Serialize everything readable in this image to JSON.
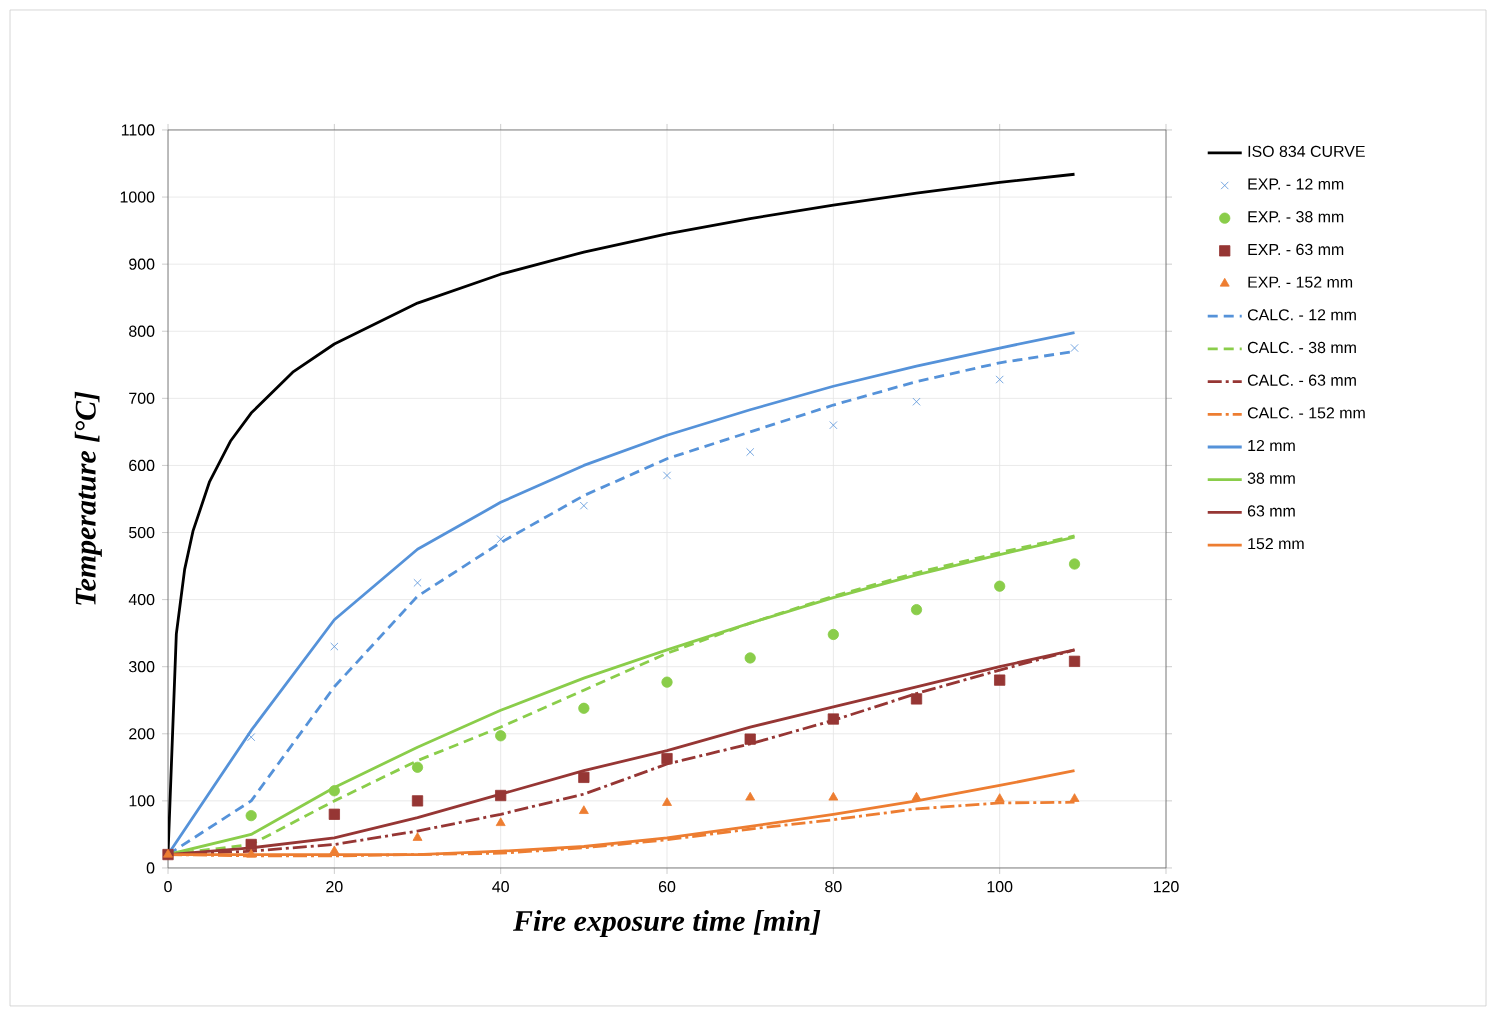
{
  "chart_data": {
    "type": "line",
    "xlabel": "Fire exposure time [min]",
    "ylabel": "Temperature [°C]",
    "xlim": [
      0,
      120
    ],
    "xticks": [
      0,
      20,
      40,
      60,
      80,
      100,
      120
    ],
    "ylim": [
      0,
      1100
    ],
    "yticks": [
      0,
      100,
      200,
      300,
      400,
      500,
      600,
      700,
      800,
      900,
      1000,
      1100
    ],
    "grid": true,
    "legend": "right",
    "series": [
      {
        "name": "ISO 834 CURVE",
        "type": "line",
        "color": "#000000",
        "line_style": "solid",
        "x": [
          0,
          1,
          2,
          3,
          5,
          7.5,
          10,
          15,
          20,
          30,
          40,
          50,
          60,
          70,
          80,
          90,
          100,
          109
        ],
        "values": [
          20,
          349,
          445,
          502,
          576,
          636,
          678,
          739,
          781,
          842,
          885,
          918,
          945,
          968,
          988,
          1006,
          1022,
          1034
        ]
      },
      {
        "name": "EXP. - 12 mm",
        "type": "scatter",
        "marker": "cross",
        "color": "#5592d9",
        "x": [
          10,
          20,
          30,
          40,
          50,
          60,
          70,
          80,
          90,
          100,
          109
        ],
        "values": [
          195,
          330,
          425,
          490,
          540,
          585,
          620,
          660,
          695,
          728,
          775
        ]
      },
      {
        "name": "EXP. - 38 mm",
        "type": "scatter",
        "marker": "circle",
        "color": "#8acd4a",
        "x": [
          10,
          20,
          30,
          40,
          50,
          60,
          70,
          80,
          90,
          100,
          109
        ],
        "values": [
          78,
          115,
          150,
          197,
          238,
          277,
          313,
          348,
          385,
          420,
          453
        ]
      },
      {
        "name": "EXP. - 63 mm",
        "type": "scatter",
        "marker": "square",
        "color": "#963634",
        "x": [
          0,
          10,
          20,
          30,
          40,
          50,
          60,
          70,
          80,
          90,
          100,
          109
        ],
        "values": [
          20,
          35,
          80,
          100,
          108,
          135,
          163,
          192,
          222,
          252,
          280,
          308
        ]
      },
      {
        "name": "EXP. - 152 mm",
        "type": "scatter",
        "marker": "triangle",
        "color": "#ed7d31",
        "x": [
          0,
          10,
          20,
          30,
          40,
          50,
          60,
          70,
          80,
          90,
          100,
          109
        ],
        "values": [
          20,
          20,
          25,
          45,
          67,
          85,
          97,
          105,
          105,
          105,
          103,
          103
        ]
      },
      {
        "name": "CALC. - 12 mm",
        "type": "line",
        "color": "#5592d9",
        "line_style": "dashed",
        "x": [
          0,
          10,
          20,
          30,
          40,
          50,
          60,
          70,
          80,
          90,
          100,
          109
        ],
        "values": [
          20,
          100,
          270,
          405,
          485,
          555,
          610,
          650,
          690,
          725,
          753,
          770
        ]
      },
      {
        "name": "CALC. - 38 mm",
        "type": "line",
        "color": "#8acd4a",
        "line_style": "dashed",
        "x": [
          0,
          10,
          20,
          30,
          40,
          50,
          60,
          70,
          80,
          90,
          100,
          109
        ],
        "values": [
          20,
          35,
          100,
          160,
          210,
          265,
          320,
          365,
          405,
          440,
          470,
          495
        ]
      },
      {
        "name": "CALC. - 63 mm",
        "type": "line",
        "color": "#963634",
        "line_style": "dashdot",
        "x": [
          0,
          10,
          20,
          30,
          40,
          50,
          60,
          70,
          80,
          90,
          100,
          109
        ],
        "values": [
          20,
          25,
          35,
          55,
          80,
          110,
          155,
          185,
          220,
          260,
          295,
          325
        ]
      },
      {
        "name": "CALC. - 152 mm",
        "type": "line",
        "color": "#ed7d31",
        "line_style": "dashdot",
        "x": [
          0,
          10,
          20,
          30,
          40,
          50,
          60,
          70,
          80,
          90,
          100,
          109
        ],
        "values": [
          20,
          18,
          18,
          20,
          22,
          30,
          42,
          58,
          72,
          88,
          97,
          98
        ]
      },
      {
        "name": "12 mm",
        "type": "line",
        "color": "#5592d9",
        "line_style": "solid",
        "x": [
          0,
          10,
          20,
          30,
          40,
          50,
          60,
          70,
          80,
          90,
          100,
          109
        ],
        "values": [
          20,
          205,
          370,
          475,
          545,
          600,
          645,
          683,
          718,
          748,
          775,
          798
        ]
      },
      {
        "name": "38 mm",
        "type": "line",
        "color": "#8acd4a",
        "line_style": "solid",
        "x": [
          0,
          10,
          20,
          30,
          40,
          50,
          60,
          70,
          80,
          90,
          100,
          109
        ],
        "values": [
          20,
          50,
          120,
          180,
          235,
          283,
          325,
          365,
          403,
          437,
          467,
          493
        ]
      },
      {
        "name": "63 mm",
        "type": "line",
        "color": "#963634",
        "line_style": "solid",
        "x": [
          0,
          10,
          20,
          30,
          40,
          50,
          60,
          70,
          80,
          90,
          100,
          109
        ],
        "values": [
          20,
          30,
          45,
          75,
          110,
          145,
          175,
          210,
          240,
          270,
          300,
          325
        ]
      },
      {
        "name": "152 mm",
        "type": "line",
        "color": "#ed7d31",
        "line_style": "solid",
        "x": [
          0,
          10,
          20,
          30,
          40,
          50,
          60,
          70,
          80,
          90,
          100,
          109
        ],
        "values": [
          20,
          20,
          20,
          20,
          25,
          32,
          45,
          62,
          80,
          100,
          123,
          145
        ]
      }
    ]
  }
}
